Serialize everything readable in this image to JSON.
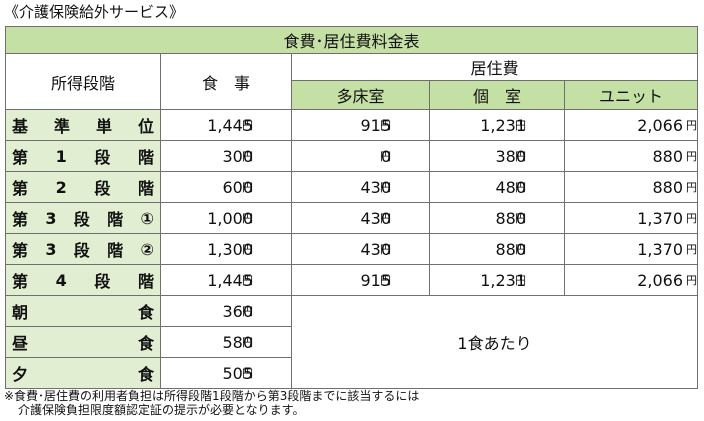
{
  "caption": "《介護保険給外サービス》",
  "table": {
    "title": "食費･居住費料金表",
    "col_income": "所得段階",
    "col_meal": "食　事",
    "col_housing": "居住費",
    "sub_headers": [
      "多床室",
      "個　室",
      "ユニット"
    ],
    "yen": "円",
    "rows": [
      {
        "label": [
          "基",
          "準",
          "単",
          "位"
        ],
        "meal": "1,445",
        "tashou": "915",
        "koshitsu": "1,231",
        "unit": "2,066"
      },
      {
        "label": [
          "第",
          "1",
          "段",
          "階"
        ],
        "meal": "300",
        "tashou": "0",
        "koshitsu": "380",
        "unit": "880"
      },
      {
        "label": [
          "第",
          "2",
          "段",
          "階"
        ],
        "meal": "600",
        "tashou": "430",
        "koshitsu": "480",
        "unit": "880"
      },
      {
        "label": [
          "第",
          "3",
          "段",
          "階",
          "①"
        ],
        "meal": "1,000",
        "tashou": "430",
        "koshitsu": "880",
        "unit": "1,370"
      },
      {
        "label": [
          "第",
          "3",
          "段",
          "階",
          "②"
        ],
        "meal": "1,300",
        "tashou": "430",
        "koshitsu": "880",
        "unit": "1,370"
      },
      {
        "label": [
          "第",
          "4",
          "段",
          "階"
        ],
        "meal": "1,445",
        "tashou": "915",
        "koshitsu": "1,231",
        "unit": "2,066"
      }
    ],
    "meals": [
      {
        "label": [
          "朝",
          "食"
        ],
        "price": "360"
      },
      {
        "label": [
          "昼",
          "食"
        ],
        "price": "580"
      },
      {
        "label": [
          "夕",
          "食"
        ],
        "price": "505"
      }
    ],
    "per_meal": "1食あたり"
  },
  "note": {
    "line1": "※食費･居住費の利用者負担は所得段階1段階から第3段階までに該当するには",
    "line2": "介護保険負担限度額認定証の提示が必要となります。"
  }
}
